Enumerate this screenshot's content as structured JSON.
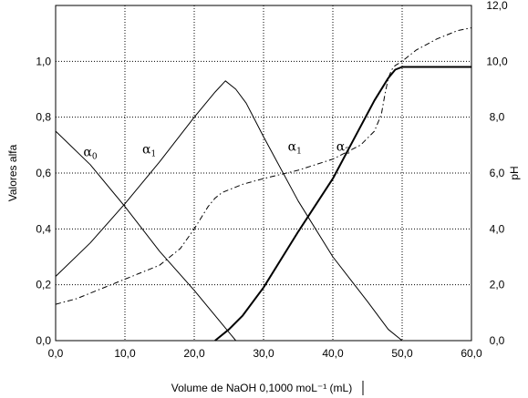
{
  "chart_data": {
    "type": "line",
    "title": "",
    "xlabel": "Volume de NaOH 0,1000 moL⁻¹ (mL)",
    "ylabel": "Valores alfa",
    "y2label": "pH",
    "xlim": [
      0,
      60
    ],
    "ylim": [
      0,
      1.2
    ],
    "y2lim": [
      0,
      12
    ],
    "grid": true,
    "x_ticks": [
      "0,0",
      "10,0",
      "20,0",
      "30,0",
      "40,0",
      "50,0",
      "60,0"
    ],
    "y_ticks": [
      "0,0",
      "0,2",
      "0,4",
      "0,6",
      "0,8",
      "1,0"
    ],
    "y2_ticks": [
      "0,0",
      "2,0",
      "4,0",
      "6,0",
      "8,0",
      "10,0",
      "12,0"
    ],
    "curve_labels": [
      {
        "greek": "α",
        "sub": "0",
        "x": 4.0,
        "y": 0.66
      },
      {
        "greek": "α",
        "sub": "1",
        "x": 12.5,
        "y": 0.67
      },
      {
        "greek": "α",
        "sub": "1",
        "x": 33.5,
        "y": 0.68
      },
      {
        "greek": "α",
        "sub": "2",
        "x": 40.5,
        "y": 0.68
      }
    ],
    "series": [
      {
        "style": "solid-thin",
        "axis": "left",
        "x": [
          0,
          5,
          10,
          15,
          20,
          25,
          26
        ],
        "y": [
          0.75,
          0.63,
          0.48,
          0.32,
          0.18,
          0.03,
          0.0
        ]
      },
      {
        "style": "solid-thin",
        "axis": "left",
        "x": [
          0,
          5,
          10,
          15,
          20,
          23,
          24.5,
          26,
          27.5,
          30,
          35,
          40,
          45,
          48,
          50
        ],
        "y": [
          0.23,
          0.35,
          0.49,
          0.64,
          0.8,
          0.89,
          0.93,
          0.9,
          0.85,
          0.73,
          0.5,
          0.3,
          0.14,
          0.04,
          0.0
        ]
      },
      {
        "style": "solid-thick",
        "axis": "left",
        "x": [
          23,
          25,
          27,
          30,
          35,
          40,
          43,
          46,
          48,
          49,
          50,
          52,
          55,
          60
        ],
        "y": [
          0.0,
          0.04,
          0.09,
          0.19,
          0.39,
          0.58,
          0.72,
          0.86,
          0.94,
          0.97,
          0.98,
          0.98,
          0.98,
          0.98
        ]
      },
      {
        "style": "dashdot",
        "axis": "right",
        "x": [
          0,
          3,
          6,
          9,
          12,
          15,
          18,
          20,
          21,
          22,
          23,
          24,
          25,
          27,
          30,
          35,
          40,
          44,
          46,
          47,
          47.5,
          48,
          48.5,
          49,
          50,
          52,
          55,
          58,
          60
        ],
        "y": [
          1.3,
          1.5,
          1.8,
          2.1,
          2.4,
          2.7,
          3.3,
          4.0,
          4.4,
          4.8,
          5.1,
          5.3,
          5.4,
          5.6,
          5.8,
          6.1,
          6.5,
          7.0,
          7.5,
          8.1,
          8.8,
          9.4,
          9.7,
          9.85,
          10.0,
          10.4,
          10.8,
          11.1,
          11.2
        ]
      }
    ]
  }
}
